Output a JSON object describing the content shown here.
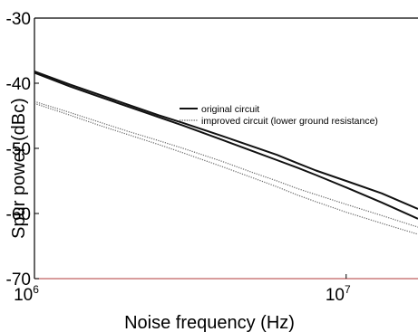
{
  "chart_data": {
    "type": "line",
    "title": "",
    "xlabel": "Noise frequency (Hz)",
    "ylabel": "Spur power (dBc)",
    "x_scale": "log",
    "xlim": [
      1000000,
      17000000
    ],
    "ylim": [
      -70,
      -30
    ],
    "x_ticks": [
      {
        "value": 1000000,
        "base": "10",
        "exp": "6"
      },
      {
        "value": 10000000,
        "base": "10",
        "exp": "7"
      }
    ],
    "y_ticks": [
      -70,
      -60,
      -50,
      -40,
      -30
    ],
    "grid": false,
    "legend_position": "upper-right",
    "series": [
      {
        "name": "original circuit",
        "style": "solid",
        "color": "#111111",
        "lines": [
          {
            "x": [
              1000000,
              1300000,
              1600000,
              2000000,
              2500000,
              3000000,
              4000000,
              5000000,
              6000000,
              7000000,
              8000000,
              10000000,
              13000000,
              17000000
            ],
            "y": [
              -38.2,
              -40.2,
              -41.7,
              -43.3,
              -44.9,
              -46.1,
              -48.1,
              -49.7,
              -51.0,
              -52.3,
              -53.4,
              -55.0,
              -56.9,
              -59.3
            ]
          },
          {
            "x": [
              1000000,
              1300000,
              1600000,
              2000000,
              2500000,
              3000000,
              4000000,
              5000000,
              6000000,
              7000000,
              8000000,
              10000000,
              13000000,
              17000000
            ],
            "y": [
              -38.4,
              -40.5,
              -42.0,
              -43.6,
              -45.2,
              -46.5,
              -48.7,
              -50.4,
              -51.8,
              -53.0,
              -54.1,
              -56.0,
              -58.3,
              -60.8
            ]
          }
        ]
      },
      {
        "name": "improved circuit (lower ground resistance)",
        "style": "dotted",
        "color": "#666666",
        "lines": [
          {
            "x": [
              1000000,
              1300000,
              1600000,
              2000000,
              2500000,
              3000000,
              4000000,
              5000000,
              6000000,
              7000000,
              8000000,
              10000000,
              13000000,
              17000000
            ],
            "y": [
              -42.8,
              -44.5,
              -45.9,
              -47.4,
              -48.8,
              -50.0,
              -52.0,
              -53.7,
              -55.0,
              -56.2,
              -57.1,
              -58.6,
              -60.3,
              -62.1
            ]
          },
          {
            "x": [
              1000000,
              1300000,
              1600000,
              2000000,
              2500000,
              3000000,
              4000000,
              5000000,
              6000000,
              7000000,
              8000000,
              10000000,
              13000000,
              17000000
            ],
            "y": [
              -43.1,
              -44.9,
              -46.4,
              -47.9,
              -49.4,
              -50.7,
              -52.8,
              -54.5,
              -55.9,
              -57.2,
              -58.2,
              -59.8,
              -61.5,
              -63.2
            ]
          }
        ]
      }
    ]
  },
  "colors": {
    "axis": "#000000",
    "bottom_axis": "#c06060"
  }
}
